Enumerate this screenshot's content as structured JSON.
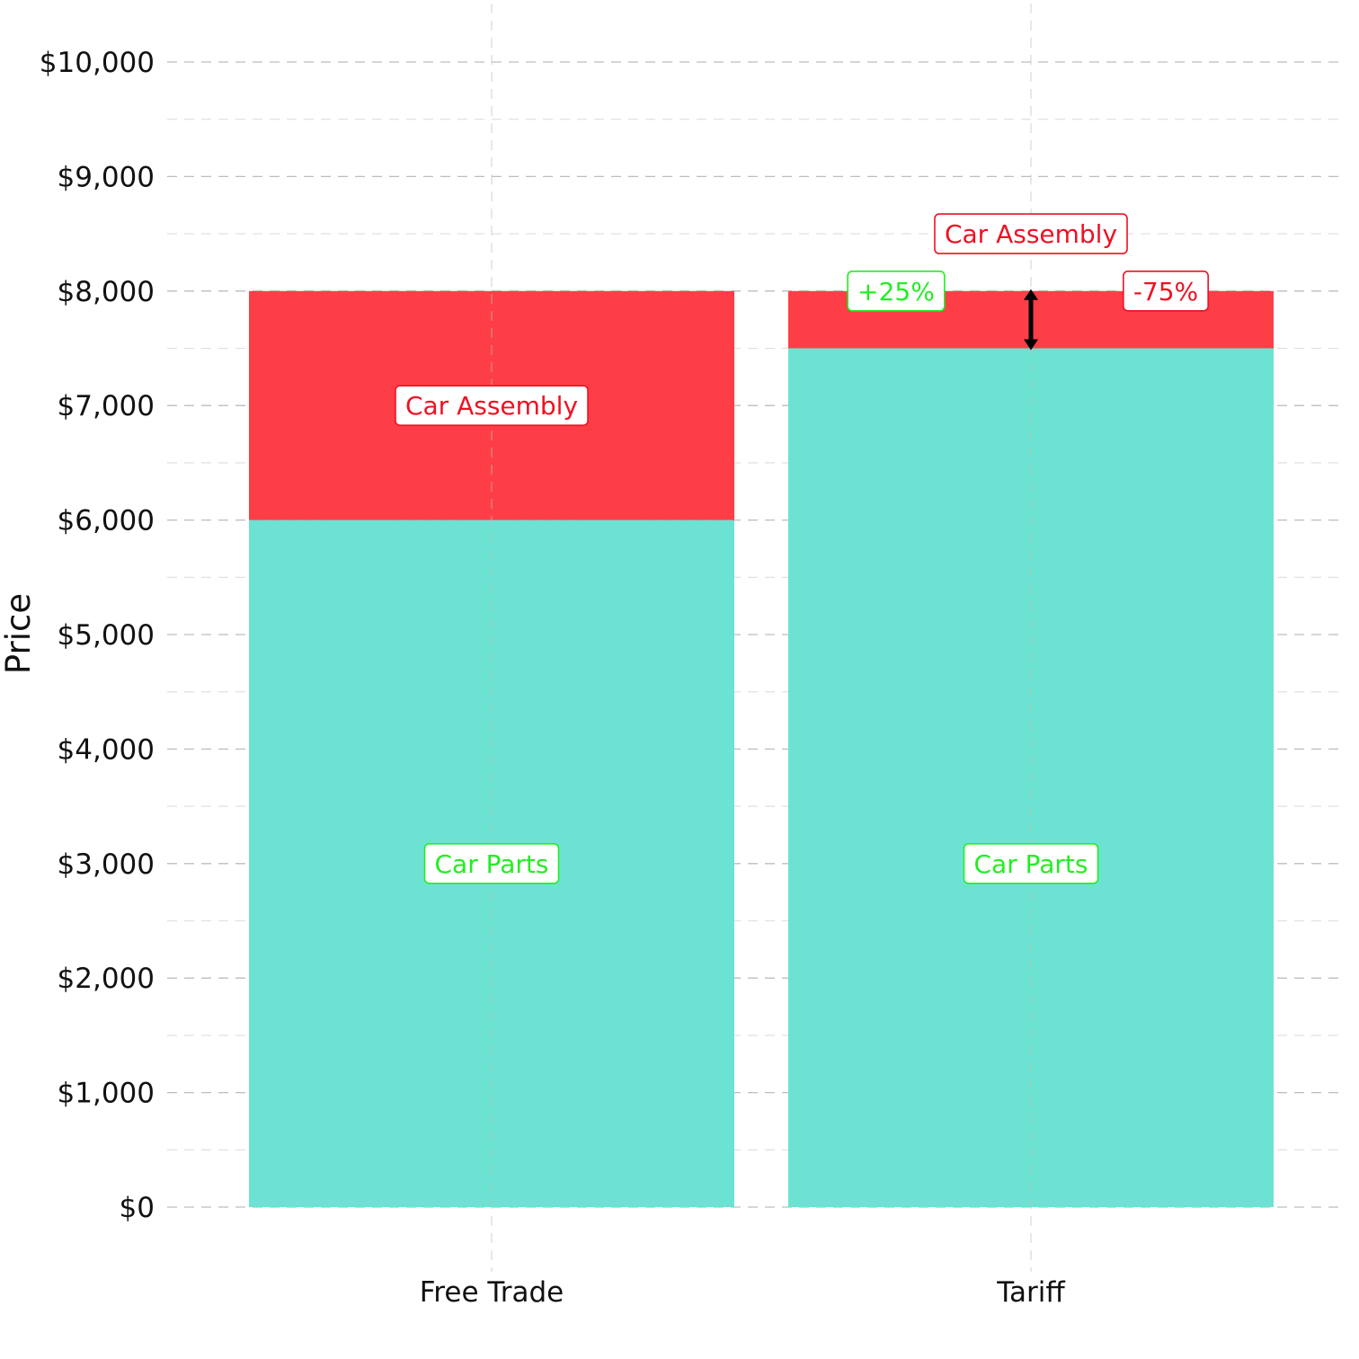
{
  "chart_data": {
    "type": "bar",
    "stacked": true,
    "ylabel": "Price",
    "xlabel": "",
    "ylim": [
      0,
      10500
    ],
    "y_ticks": [
      0,
      1000,
      2000,
      3000,
      4000,
      5000,
      6000,
      7000,
      8000,
      9000,
      10000
    ],
    "y_tick_labels": [
      "$0",
      "$1,000",
      "$2,000",
      "$3,000",
      "$4,000",
      "$5,000",
      "$6,000",
      "$7,000",
      "$8,000",
      "$9,000",
      "$10,000"
    ],
    "grid": true,
    "legend": "none",
    "categories": [
      "Free Trade",
      "Tariff"
    ],
    "series": [
      {
        "key": "parts",
        "values": [
          6000,
          7500
        ],
        "color": "#6ce3d2"
      },
      {
        "key": "assembly",
        "values": [
          2000,
          500
        ],
        "color": "#fe3e47"
      }
    ],
    "annotations": [
      {
        "text": "Car Parts",
        "category": "Free Trade",
        "y": 3000,
        "color": "#22ee22"
      },
      {
        "text": "Car Assembly",
        "category": "Free Trade",
        "y": 7000,
        "color": "#ee1122"
      },
      {
        "text": "Car Parts",
        "category": "Tariff",
        "y": 3000,
        "color": "#22ee22"
      },
      {
        "text": "Car Assembly",
        "category": "Tariff",
        "y": 8500,
        "color": "#ee1122"
      },
      {
        "text": "+25%",
        "category": "Tariff",
        "y": 8000,
        "offset": -0.25,
        "color": "#22ee22"
      },
      {
        "text": "-75%",
        "category": "Tariff",
        "y": 8000,
        "offset": 0.25,
        "color": "#ee1122"
      }
    ],
    "arrow": {
      "category": "Tariff",
      "from": 7500,
      "to": 8000,
      "color": "#000000"
    }
  }
}
